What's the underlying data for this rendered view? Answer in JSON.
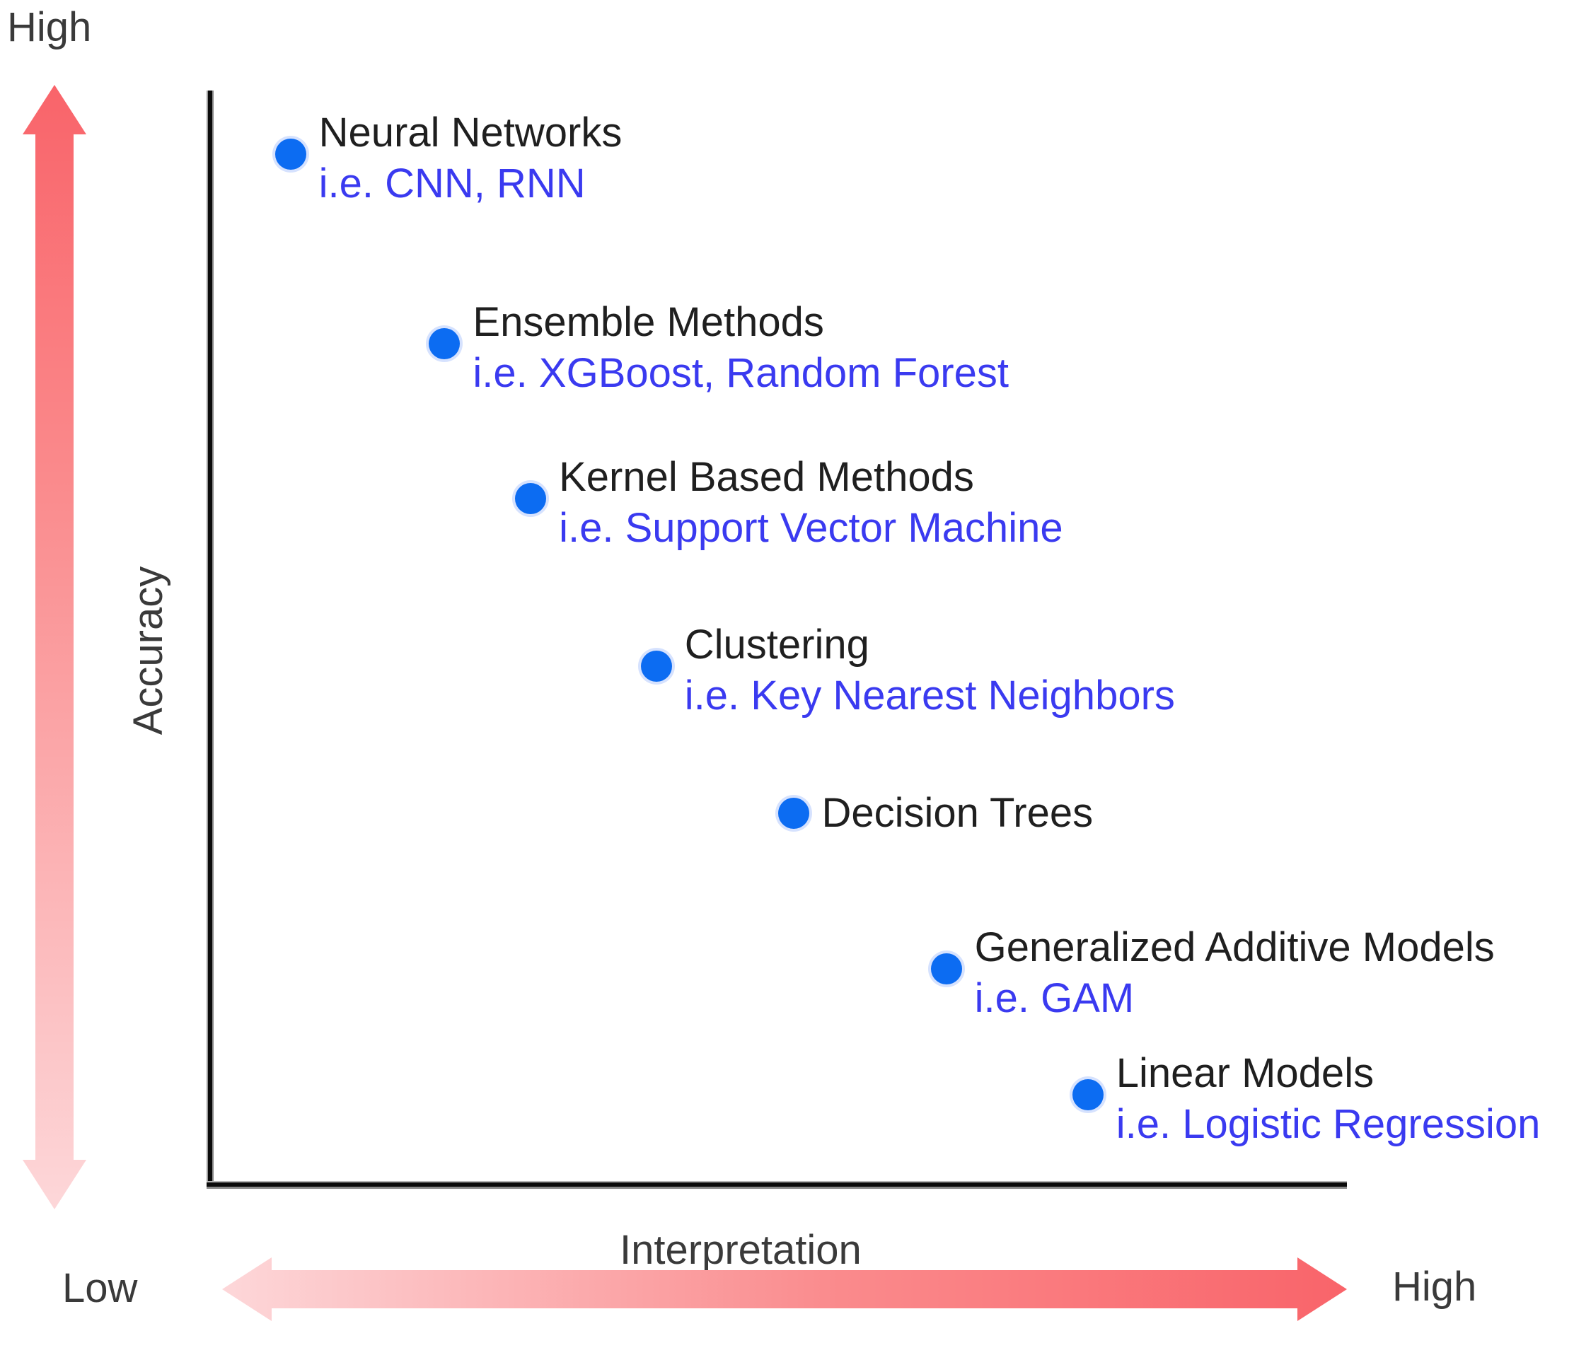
{
  "chart_data": {
    "type": "scatter",
    "title": "",
    "xlabel": "Interpretation",
    "ylabel": "Accuracy",
    "x_low_label": "Low",
    "x_high_label": "High",
    "y_high_label": "High",
    "legend": "none",
    "grid": false,
    "axis_style": "double-headed gradient arrows, qualitative Low to High scale",
    "points": [
      {
        "name": "Neural Networks",
        "example": "i.e. CNN, RNN",
        "interpretation": 0.071,
        "accuracy": 0.943
      },
      {
        "name": "Ensemble Methods",
        "example": "i.e. XGBoost, Random Forest",
        "interpretation": 0.207,
        "accuracy": 0.77
      },
      {
        "name": "Kernel Based Methods",
        "example": "i.e. Support Vector Machine",
        "interpretation": 0.283,
        "accuracy": 0.628
      },
      {
        "name": "Clustering",
        "example": "i.e. Key Nearest Neighbors",
        "interpretation": 0.394,
        "accuracy": 0.475
      },
      {
        "name": "Decision Trees",
        "example": "",
        "interpretation": 0.515,
        "accuracy": 0.34
      },
      {
        "name": "Generalized Additive Models",
        "example": "i.e. GAM",
        "interpretation": 0.65,
        "accuracy": 0.198
      },
      {
        "name": "Linear Models",
        "example": "i.e. Logistic Regression",
        "interpretation": 0.775,
        "accuracy": 0.083
      }
    ]
  },
  "colors": {
    "dot": "#0c6cf2",
    "title_text": "#1f1f1f",
    "example_text": "#3a3af0",
    "axis_line": "#0b0b0b",
    "axis_label_text": "#3a3a3a",
    "arrow_strong": "#f9646a",
    "arrow_mid": "#fa8a8c",
    "arrow_light": "#fdd7d9"
  }
}
